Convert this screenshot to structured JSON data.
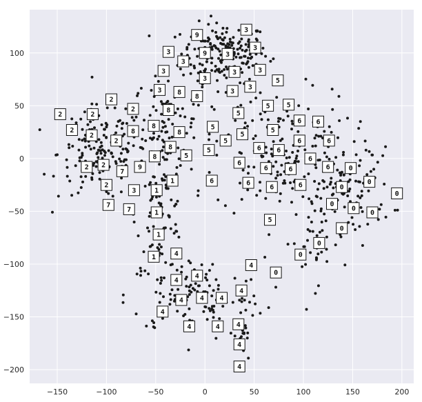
{
  "chart_data": {
    "type": "scatter",
    "title": "",
    "xlabel": "",
    "ylabel": "",
    "xlim": [
      -178,
      212
    ],
    "ylim": [
      -213,
      141
    ],
    "xticks": [
      -150,
      -100,
      -50,
      0,
      50,
      100,
      150,
      200
    ],
    "yticks": [
      100,
      50,
      0,
      -50,
      -100,
      -150,
      -200
    ],
    "xtick_labels": [
      "−150",
      "−100",
      "−50",
      "0",
      "50",
      "100",
      "150",
      "200"
    ],
    "ytick_labels": [
      "100",
      "50",
      "0",
      "−50",
      "−100",
      "−150",
      "−200"
    ],
    "grid": true,
    "background_color": "#eaeaf2",
    "point_color": "#1a1a1a",
    "clusters": [
      {
        "center": [
          20,
          100
        ],
        "spread": [
          22,
          14
        ],
        "count": 190
      },
      {
        "center": [
          -40,
          30
        ],
        "spread": [
          16,
          25
        ],
        "count": 110
      },
      {
        "center": [
          -105,
          5
        ],
        "spread": [
          22,
          22
        ],
        "count": 170
      },
      {
        "center": [
          -45,
          -55
        ],
        "spread": [
          12,
          25
        ],
        "count": 80
      },
      {
        "center": [
          -10,
          -130
        ],
        "spread": [
          35,
          18
        ],
        "count": 120
      },
      {
        "center": [
          38,
          -170
        ],
        "spread": [
          4,
          20
        ],
        "count": 20
      },
      {
        "center": [
          80,
          5
        ],
        "spread": [
          35,
          30
        ],
        "count": 190
      },
      {
        "center": [
          150,
          -30
        ],
        "spread": [
          20,
          20
        ],
        "count": 90
      },
      {
        "center": [
          110,
          -80
        ],
        "spread": [
          15,
          20
        ],
        "count": 35
      }
    ],
    "digit_labels": [
      {
        "label": "2",
        "x": -147,
        "y": 42
      },
      {
        "label": "2",
        "x": -135,
        "y": 27
      },
      {
        "label": "2",
        "x": -114,
        "y": 42
      },
      {
        "label": "2",
        "x": -115,
        "y": 22
      },
      {
        "label": "2",
        "x": -95,
        "y": 56
      },
      {
        "label": "2",
        "x": -90,
        "y": 17
      },
      {
        "label": "2",
        "x": -73,
        "y": 47
      },
      {
        "label": "2",
        "x": -120,
        "y": -8
      },
      {
        "label": "2",
        "x": -103,
        "y": -6
      },
      {
        "label": "2",
        "x": -100,
        "y": -25
      },
      {
        "label": "7",
        "x": -98,
        "y": -44
      },
      {
        "label": "7",
        "x": -77,
        "y": -48
      },
      {
        "label": "7",
        "x": -84,
        "y": -12
      },
      {
        "label": "9",
        "x": -66,
        "y": -8
      },
      {
        "label": "3",
        "x": -72,
        "y": -30
      },
      {
        "label": "8",
        "x": -73,
        "y": 26
      },
      {
        "label": "8",
        "x": -52,
        "y": 31
      },
      {
        "label": "8",
        "x": -37,
        "y": 46
      },
      {
        "label": "8",
        "x": -35,
        "y": 11
      },
      {
        "label": "8",
        "x": -26,
        "y": 25
      },
      {
        "label": "8",
        "x": -51,
        "y": 2
      },
      {
        "label": "1",
        "x": -49,
        "y": -30
      },
      {
        "label": "1",
        "x": -33,
        "y": -21
      },
      {
        "label": "1",
        "x": -49,
        "y": -51
      },
      {
        "label": "1",
        "x": -47,
        "y": -72
      },
      {
        "label": "1",
        "x": -52,
        "y": -93
      },
      {
        "label": "3",
        "x": -37,
        "y": 101
      },
      {
        "label": "3",
        "x": -42,
        "y": 83
      },
      {
        "label": "3",
        "x": -46,
        "y": 65
      },
      {
        "label": "3",
        "x": -22,
        "y": 92
      },
      {
        "label": "8",
        "x": -26,
        "y": 63
      },
      {
        "label": "8",
        "x": -8,
        "y": 59
      },
      {
        "label": "9",
        "x": -8,
        "y": 117
      },
      {
        "label": "9",
        "x": 0,
        "y": 100
      },
      {
        "label": "3",
        "x": 0,
        "y": 76
      },
      {
        "label": "3",
        "x": 23,
        "y": 99
      },
      {
        "label": "3",
        "x": 30,
        "y": 82
      },
      {
        "label": "3",
        "x": 28,
        "y": 64
      },
      {
        "label": "3",
        "x": 42,
        "y": 122
      },
      {
        "label": "3",
        "x": 51,
        "y": 105
      },
      {
        "label": "3",
        "x": 56,
        "y": 84
      },
      {
        "label": "3",
        "x": 46,
        "y": 68
      },
      {
        "label": "5",
        "x": 74,
        "y": 74
      },
      {
        "label": "5",
        "x": 34,
        "y": 43
      },
      {
        "label": "5",
        "x": 64,
        "y": 50
      },
      {
        "label": "5",
        "x": 85,
        "y": 51
      },
      {
        "label": "5",
        "x": 8,
        "y": 30
      },
      {
        "label": "5",
        "x": 38,
        "y": 23
      },
      {
        "label": "5",
        "x": 21,
        "y": 17
      },
      {
        "label": "5",
        "x": 4,
        "y": 8
      },
      {
        "label": "5",
        "x": -19,
        "y": 3
      },
      {
        "label": "5",
        "x": 69,
        "y": 27
      },
      {
        "label": "6",
        "x": 7,
        "y": -21
      },
      {
        "label": "6",
        "x": 35,
        "y": -4
      },
      {
        "label": "6",
        "x": 44,
        "y": -23
      },
      {
        "label": "6",
        "x": 55,
        "y": 10
      },
      {
        "label": "6",
        "x": 62,
        "y": -9
      },
      {
        "label": "6",
        "x": 75,
        "y": 8
      },
      {
        "label": "6",
        "x": 87,
        "y": -10
      },
      {
        "label": "6",
        "x": 68,
        "y": -27
      },
      {
        "label": "6",
        "x": 97,
        "y": -25
      },
      {
        "label": "6",
        "x": 96,
        "y": 36
      },
      {
        "label": "6",
        "x": 115,
        "y": 35
      },
      {
        "label": "6",
        "x": 96,
        "y": 17
      },
      {
        "label": "6",
        "x": 126,
        "y": 17
      },
      {
        "label": "6",
        "x": 107,
        "y": 0
      },
      {
        "label": "6",
        "x": 125,
        "y": -8
      },
      {
        "label": "5",
        "x": 66,
        "y": -58
      },
      {
        "label": "0",
        "x": 148,
        "y": -9
      },
      {
        "label": "0",
        "x": 139,
        "y": -27
      },
      {
        "label": "0",
        "x": 167,
        "y": -22
      },
      {
        "label": "0",
        "x": 195,
        "y": -33
      },
      {
        "label": "0",
        "x": 129,
        "y": -43
      },
      {
        "label": "0",
        "x": 151,
        "y": -47
      },
      {
        "label": "0",
        "x": 170,
        "y": -51
      },
      {
        "label": "0",
        "x": 139,
        "y": -66
      },
      {
        "label": "0",
        "x": 116,
        "y": -80
      },
      {
        "label": "0",
        "x": 97,
        "y": -91
      },
      {
        "label": "0",
        "x": 72,
        "y": -108
      },
      {
        "label": "4",
        "x": -29,
        "y": -90
      },
      {
        "label": "4",
        "x": 47,
        "y": -101
      },
      {
        "label": "4",
        "x": -29,
        "y": -115
      },
      {
        "label": "4",
        "x": -8,
        "y": -111
      },
      {
        "label": "4",
        "x": -24,
        "y": -134
      },
      {
        "label": "4",
        "x": -3,
        "y": -132
      },
      {
        "label": "4",
        "x": 17,
        "y": -132
      },
      {
        "label": "4",
        "x": 37,
        "y": -125
      },
      {
        "label": "4",
        "x": -43,
        "y": -145
      },
      {
        "label": "4",
        "x": -16,
        "y": -159
      },
      {
        "label": "4",
        "x": 13,
        "y": -159
      },
      {
        "label": "4",
        "x": 34,
        "y": -157
      },
      {
        "label": "4",
        "x": 35,
        "y": -176
      },
      {
        "label": "4",
        "x": 35,
        "y": -197
      }
    ]
  }
}
